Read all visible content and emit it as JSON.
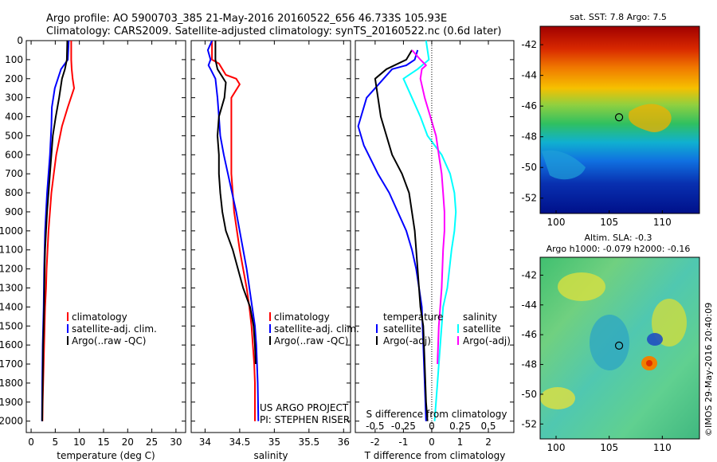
{
  "header": {
    "line1": "Argo profile: AO 5900703_385 21-May-2016 20160522_656 46.733S 105.93E",
    "line2": "Climatology: CARS2009. Satellite-adjusted climatology: synTS_20160522.nc (0.6d later)"
  },
  "colors": {
    "climatology": "#ff0000",
    "satellite": "#0000ff",
    "argo": "#000000",
    "satellite_cyan": "#00ffff",
    "argo_magenta": "#ff00ff"
  },
  "credit": "US ARGO PROJECT",
  "pi": "PI: STEPHEN RISER",
  "side_stamp": "©IMOS 29-May-2016 20:40:09",
  "chart_data": [
    {
      "type": "line",
      "xlabel": "temperature (deg C)",
      "ylabel": "",
      "xlim": [
        -1,
        32
      ],
      "ylim": [
        2060,
        0
      ],
      "xticks": [
        0,
        5,
        10,
        15,
        20,
        25,
        30
      ],
      "yticks": [
        0,
        100,
        200,
        300,
        400,
        500,
        600,
        700,
        800,
        900,
        1000,
        1100,
        1200,
        1300,
        1400,
        1500,
        1600,
        1700,
        1800,
        1900,
        2000
      ],
      "legend": [
        "climatology",
        "satellite-adj. clim.",
        "Argo(..raw -QC)"
      ],
      "series": [
        {
          "name": "climatology",
          "color": "#ff0000",
          "x": [
            8.3,
            8.3,
            8.4,
            8.6,
            8.9,
            7.6,
            6.4,
            5.2,
            4.7,
            4.2,
            3.9,
            3.6,
            3.4,
            3.2,
            3.1,
            2.9,
            2.8,
            2.7,
            2.6,
            2.5,
            2.4,
            2.35
          ],
          "y": [
            0,
            100,
            150,
            200,
            250,
            350,
            450,
            600,
            700,
            800,
            900,
            1000,
            1100,
            1200,
            1300,
            1400,
            1500,
            1600,
            1700,
            1800,
            1900,
            2000
          ]
        },
        {
          "name": "satellite-adj. clim.",
          "color": "#0000ff",
          "x": [
            7.8,
            7.6,
            6.2,
            4.9,
            4.3,
            4.2,
            3.9,
            3.6,
            3.3,
            3.1,
            2.9,
            2.8,
            2.7,
            2.6,
            2.5,
            2.4,
            2.3,
            2.25
          ],
          "y": [
            0,
            100,
            150,
            250,
            350,
            450,
            600,
            700,
            800,
            900,
            1000,
            1100,
            1200,
            1400,
            1500,
            1600,
            1800,
            2000
          ]
        },
        {
          "name": "Argo(..raw -QC)",
          "color": "#000000",
          "x": [
            7.5,
            7.4,
            7.0,
            6.4,
            5.8,
            5.1,
            4.5,
            4.2,
            3.9,
            3.6,
            3.3,
            3.1,
            2.9,
            2.8,
            2.7,
            2.6,
            2.5,
            2.4,
            2.3
          ],
          "y": [
            0,
            100,
            150,
            200,
            300,
            400,
            500,
            600,
            700,
            800,
            900,
            1000,
            1100,
            1200,
            1400,
            1500,
            1600,
            1800,
            2000
          ]
        }
      ]
    },
    {
      "type": "line",
      "xlabel": "salinity",
      "ylabel": "",
      "xlim": [
        33.8,
        36.1
      ],
      "ylim": [
        2060,
        0
      ],
      "xticks": [
        34,
        34.5,
        35,
        35.5,
        36
      ],
      "legend": [
        "climatology",
        "satellite-adj. clim.",
        "Argo(..raw -QC)"
      ],
      "series": [
        {
          "name": "climatology",
          "color": "#ff0000",
          "x": [
            34.1,
            34.1,
            34.2,
            34.25,
            34.3,
            34.45,
            34.5,
            34.38,
            34.38,
            34.38,
            34.42,
            34.46,
            34.5,
            34.55,
            34.6,
            34.64,
            34.67,
            34.69,
            34.71,
            34.72,
            34.72
          ],
          "y": [
            0,
            100,
            120,
            150,
            180,
            200,
            230,
            300,
            500,
            700,
            900,
            1000,
            1100,
            1200,
            1300,
            1400,
            1500,
            1600,
            1700,
            1800,
            2000
          ]
        },
        {
          "name": "satellite-adj. clim.",
          "color": "#0000ff",
          "x": [
            34.1,
            34.04,
            34.08,
            34.05,
            34.08,
            34.15,
            34.18,
            34.2,
            34.22,
            34.27,
            34.33,
            34.45,
            34.6,
            34.68,
            34.72,
            34.74,
            34.76,
            34.77
          ],
          "y": [
            0,
            50,
            100,
            130,
            150,
            200,
            300,
            400,
            500,
            600,
            700,
            900,
            1200,
            1400,
            1500,
            1600,
            1800,
            2000
          ]
        },
        {
          "name": "Argo(..raw -QC)",
          "color": "#000000",
          "x": [
            34.15,
            34.15,
            34.18,
            34.3,
            34.28,
            34.2,
            34.18,
            34.2,
            34.2,
            34.22,
            34.25,
            34.3,
            34.4,
            34.55,
            34.65,
            34.7,
            34.72,
            34.73
          ],
          "y": [
            0,
            100,
            150,
            220,
            300,
            400,
            500,
            600,
            700,
            800,
            900,
            1000,
            1100,
            1300,
            1400,
            1500,
            1600,
            1700
          ]
        }
      ]
    },
    {
      "type": "line",
      "xlabel": "T difference from climatology",
      "xlabel2": "S difference from climatology",
      "ylabel": "",
      "xlim": [
        -2.7,
        2.9
      ],
      "ylim": [
        2060,
        0
      ],
      "xticks": [
        -2,
        -1,
        0,
        1,
        2
      ],
      "xticks2": [
        "-0.5",
        "-0.25",
        "0",
        "0.25",
        "0.5"
      ],
      "xticks2_pos": [
        -2,
        -1,
        0,
        1,
        2
      ],
      "legend_temp_title": "temperature",
      "legend_sal_title": "salinity",
      "legend": [
        "satellite",
        "Argo(-adj)",
        "satellite",
        "Argo(-adj)"
      ],
      "series": [
        {
          "name": "satellite",
          "color": "#0000ff",
          "x": [
            -0.5,
            -0.6,
            -0.9,
            -1.4,
            -2.3,
            -2.6,
            -2.4,
            -1.9,
            -1.5,
            -1.2,
            -0.9,
            -0.7,
            -0.55,
            -0.45,
            -0.35,
            -0.3,
            -0.25,
            -0.2
          ],
          "y": [
            50,
            100,
            130,
            150,
            300,
            450,
            550,
            700,
            800,
            900,
            1000,
            1100,
            1200,
            1300,
            1400,
            1600,
            1800,
            2000
          ]
        },
        {
          "name": "Argo(-adj)",
          "color": "#000000",
          "x": [
            -0.7,
            -0.9,
            -1.6,
            -2.0,
            -1.8,
            -1.4,
            -1.05,
            -0.8,
            -0.6,
            -0.5,
            -0.4,
            -0.3,
            -0.25,
            -0.2,
            -0.15
          ],
          "y": [
            50,
            100,
            150,
            200,
            400,
            600,
            700,
            800,
            1000,
            1200,
            1400,
            1500,
            1700,
            1900,
            2000
          ]
        },
        {
          "name": "satellite",
          "color": "#00ffff",
          "x": [
            -0.2,
            -0.1,
            -0.5,
            -1.0,
            -0.7,
            -0.4,
            -0.15,
            0.35,
            0.65,
            0.8,
            0.85,
            0.8,
            0.7,
            0.55,
            0.4,
            0.3,
            0.2,
            0.1
          ],
          "y": [
            0,
            100,
            150,
            200,
            300,
            400,
            500,
            600,
            700,
            800,
            900,
            1000,
            1100,
            1300,
            1400,
            1600,
            1800,
            2000
          ]
        },
        {
          "name": "Argo(-adj)",
          "color": "#ff00ff",
          "x": [
            -0.7,
            -0.4,
            -0.2,
            -0.35,
            -0.4,
            -0.25,
            -0.05,
            0.15,
            0.25,
            0.35,
            0.4,
            0.45,
            0.45,
            0.4,
            0.35,
            0.3,
            0.25,
            0.2
          ],
          "y": [
            50,
            100,
            130,
            150,
            200,
            300,
            400,
            500,
            600,
            700,
            800,
            900,
            1000,
            1100,
            1300,
            1400,
            1500,
            1700
          ]
        }
      ]
    },
    {
      "type": "heatmap",
      "title": "sat. SST: 7.8  Argo: 7.5",
      "xlim": [
        98.5,
        113.5
      ],
      "ylim": [
        -53,
        -40.8
      ],
      "xticks": [
        100,
        105,
        110
      ],
      "yticks": [
        -42,
        -44,
        -46,
        -48,
        -50,
        -52
      ],
      "marker": {
        "lon": 105.93,
        "lat": -46.733
      }
    },
    {
      "type": "heatmap",
      "title": "Altim. SLA: -0.3",
      "subtitle": "Argo h1000: -0.079 h2000: -0.16",
      "xlim": [
        98.5,
        113.5
      ],
      "ylim": [
        -53,
        -40.8
      ],
      "xticks": [
        100,
        105,
        110
      ],
      "yticks": [
        -42,
        -44,
        -46,
        -48,
        -50,
        -52
      ],
      "marker": {
        "lon": 105.93,
        "lat": -46.733
      }
    }
  ]
}
